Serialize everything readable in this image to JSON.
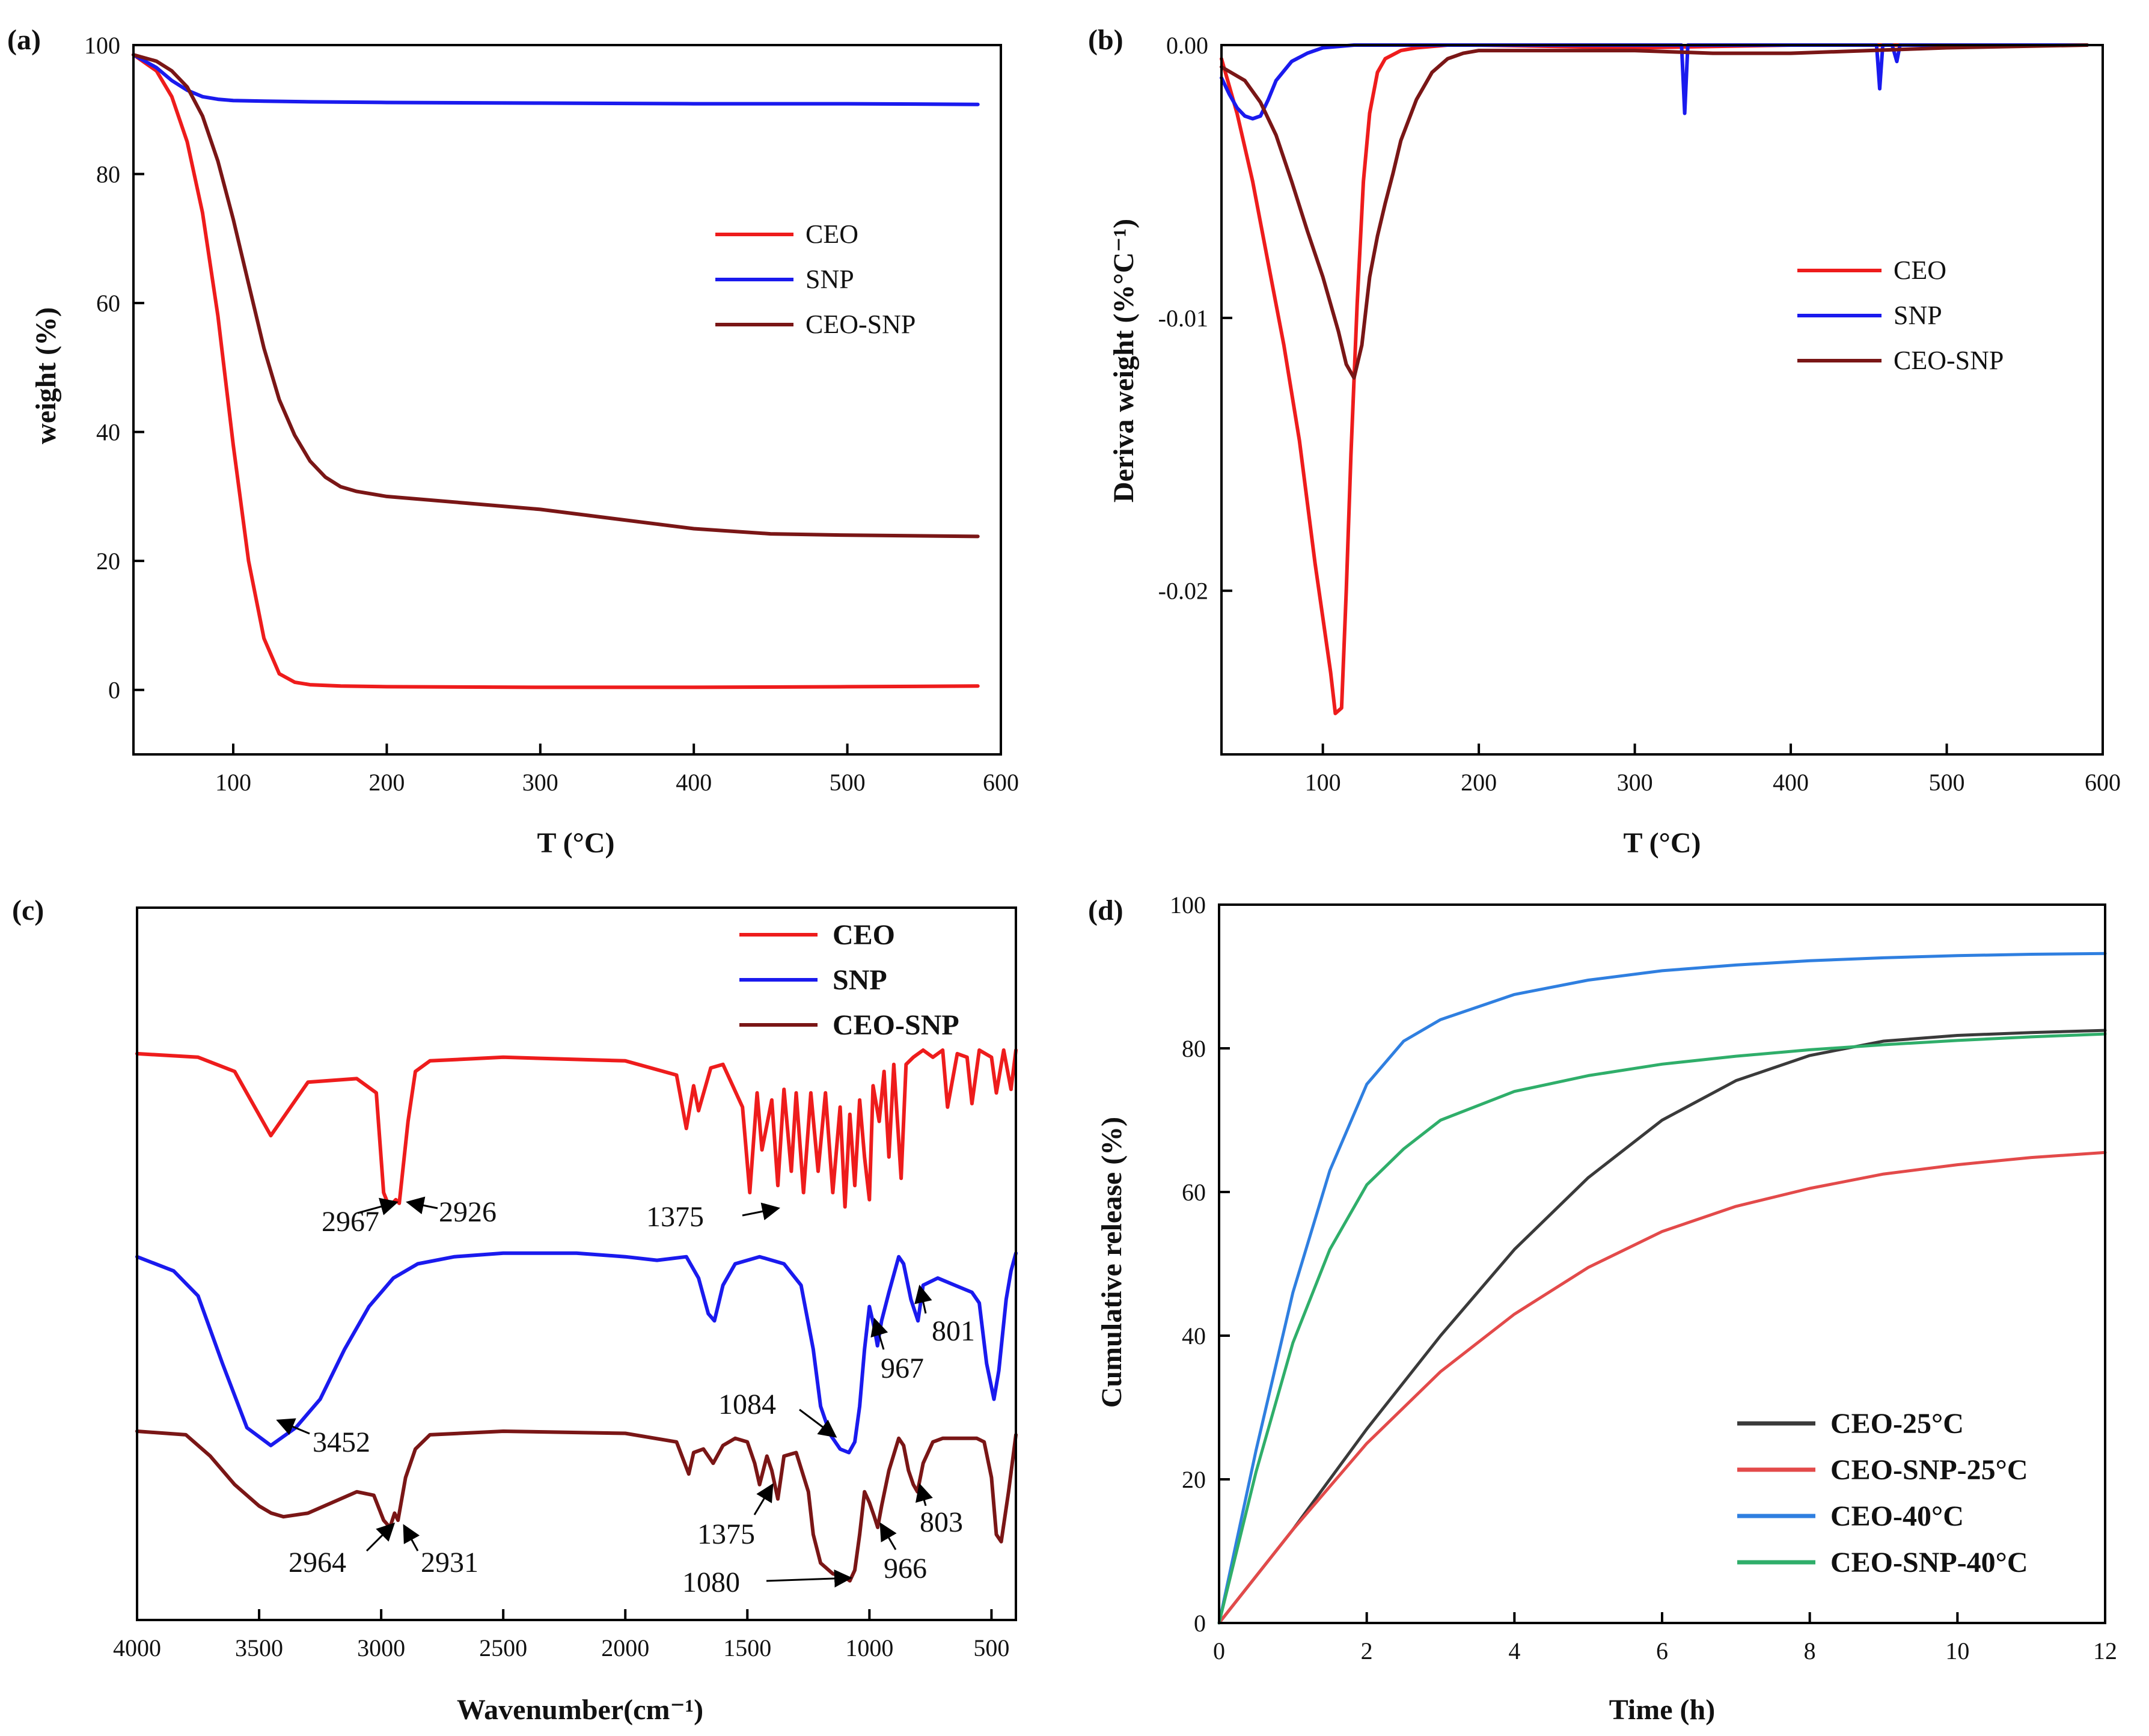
{
  "figure": {
    "panels": [
      "(a)",
      "(b)",
      "(c)",
      "(d)"
    ]
  },
  "chart_data": [
    {
      "id": "a",
      "type": "line",
      "panel_label": "(a)",
      "xlabel": "T (°C)",
      "ylabel": "weight (%)",
      "xlim": [
        35,
        600
      ],
      "ylim": [
        -10,
        100
      ],
      "xticks": [
        100,
        200,
        300,
        400,
        500,
        600
      ],
      "yticks": [
        0,
        20,
        40,
        60,
        80,
        100
      ],
      "legend_position": "center-right",
      "legend": [
        "CEO",
        "SNP",
        "CEO-SNP"
      ],
      "colors": [
        "#ee1c1c",
        "#1a1aee",
        "#7a1616"
      ],
      "series": [
        {
          "name": "CEO",
          "x": [
            35,
            50,
            60,
            70,
            80,
            90,
            100,
            110,
            120,
            130,
            140,
            150,
            170,
            200,
            300,
            400,
            500,
            585
          ],
          "y": [
            98.5,
            96,
            92,
            85,
            74,
            58,
            38,
            20,
            8,
            2.5,
            1.2,
            0.8,
            0.6,
            0.5,
            0.4,
            0.4,
            0.5,
            0.6
          ]
        },
        {
          "name": "SNP",
          "x": [
            35,
            50,
            60,
            70,
            80,
            90,
            100,
            120,
            150,
            200,
            300,
            400,
            500,
            585
          ],
          "y": [
            98.5,
            96.5,
            94.5,
            93,
            92,
            91.6,
            91.4,
            91.3,
            91.2,
            91.1,
            91,
            90.9,
            90.9,
            90.8
          ]
        },
        {
          "name": "CEO-SNP",
          "x": [
            35,
            50,
            60,
            70,
            80,
            90,
            100,
            110,
            120,
            130,
            140,
            150,
            160,
            170,
            180,
            200,
            250,
            300,
            350,
            400,
            450,
            500,
            585
          ],
          "y": [
            98.5,
            97.5,
            96,
            93.5,
            89,
            82,
            73,
            63,
            53,
            45,
            39.5,
            35.5,
            33,
            31.5,
            30.8,
            30,
            29,
            28,
            26.5,
            25,
            24.2,
            24,
            23.8
          ]
        }
      ]
    },
    {
      "id": "b",
      "type": "line",
      "panel_label": "(b)",
      "xlabel": "T (°C)",
      "ylabel": "Deriva weight (%°C⁻¹)",
      "xlim": [
        35,
        600
      ],
      "ylim": [
        -0.026,
        0
      ],
      "xticks": [
        100,
        200,
        300,
        400,
        500,
        600
      ],
      "yticks": [
        0.0,
        -0.01,
        -0.02
      ],
      "ytick_labels": [
        "0.00",
        "-0.01",
        "-0.02"
      ],
      "legend_position": "center-right",
      "legend": [
        "CEO",
        "SNP",
        "CEO-SNP"
      ],
      "colors": [
        "#ee1c1c",
        "#1a1aee",
        "#7a1616"
      ],
      "series": [
        {
          "name": "CEO",
          "x": [
            35,
            45,
            55,
            65,
            75,
            85,
            95,
            100,
            105,
            108,
            112,
            115,
            118,
            122,
            126,
            130,
            135,
            140,
            150,
            160,
            180,
            200,
            300,
            400,
            500,
            590
          ],
          "y": [
            -0.0005,
            -0.0025,
            -0.005,
            -0.008,
            -0.011,
            -0.0145,
            -0.019,
            -0.021,
            -0.023,
            -0.0245,
            -0.0243,
            -0.02,
            -0.015,
            -0.0095,
            -0.005,
            -0.0025,
            -0.001,
            -0.0005,
            -0.0002,
            -0.0001,
            0,
            0,
            -0.0001,
            0,
            0,
            0
          ]
        },
        {
          "name": "SNP",
          "x": [
            35,
            40,
            45,
            50,
            55,
            60,
            65,
            70,
            80,
            90,
            100,
            120,
            150,
            200,
            300,
            330,
            332,
            334,
            340,
            400,
            450,
            455,
            457,
            459,
            465,
            468,
            470,
            475,
            500,
            590
          ],
          "y": [
            -0.0012,
            -0.0018,
            -0.0023,
            -0.0026,
            -0.0027,
            -0.0026,
            -0.002,
            -0.0013,
            -0.0006,
            -0.0003,
            -0.0001,
            0,
            0,
            0,
            0,
            0,
            -0.0025,
            0,
            0,
            0,
            0,
            0,
            -0.0016,
            0,
            0,
            -0.0006,
            0,
            0,
            0,
            0
          ]
        },
        {
          "name": "CEO-SNP",
          "x": [
            35,
            50,
            60,
            70,
            80,
            90,
            100,
            110,
            115,
            120,
            125,
            130,
            135,
            140,
            145,
            150,
            160,
            170,
            180,
            190,
            200,
            250,
            300,
            350,
            400,
            450,
            500,
            590
          ],
          "y": [
            -0.0008,
            -0.0013,
            -0.0021,
            -0.0033,
            -0.005,
            -0.0068,
            -0.0085,
            -0.0105,
            -0.0117,
            -0.0122,
            -0.011,
            -0.0085,
            -0.007,
            -0.0058,
            -0.0047,
            -0.0035,
            -0.002,
            -0.001,
            -0.0005,
            -0.0003,
            -0.0002,
            -0.0002,
            -0.0002,
            -0.0003,
            -0.0003,
            -0.0002,
            -0.0001,
            0
          ]
        }
      ]
    },
    {
      "id": "c",
      "type": "line",
      "panel_label": "(c)",
      "xlabel": "Wavenumber(cm⁻¹)",
      "ylabel": "",
      "xlim": [
        4000,
        400
      ],
      "ylim": [
        0,
        1
      ],
      "xticks": [
        4000,
        3500,
        3000,
        2500,
        2000,
        1500,
        1000,
        500
      ],
      "legend_position": "top-right",
      "legend": [
        "CEO",
        "SNP",
        "CEO-SNP"
      ],
      "colors": [
        "#ee1c1c",
        "#1a1aee",
        "#7a1616"
      ],
      "series": [
        {
          "name": "CEO",
          "x": [
            4000,
            3750,
            3600,
            3452,
            3300,
            3100,
            3020,
            2990,
            2967,
            2940,
            2926,
            2890,
            2860,
            2800,
            2500,
            2000,
            1790,
            1750,
            1720,
            1700,
            1650,
            1600,
            1520,
            1490,
            1460,
            1440,
            1400,
            1375,
            1350,
            1320,
            1300,
            1270,
            1240,
            1210,
            1180,
            1150,
            1120,
            1100,
            1080,
            1060,
            1040,
            1020,
            1000,
            985,
            960,
            940,
            920,
            900,
            870,
            850,
            820,
            780,
            740,
            700,
            680,
            640,
            600,
            580,
            550,
            500,
            480,
            450,
            420,
            400
          ],
          "y": [
            0.795,
            0.79,
            0.77,
            0.68,
            0.755,
            0.76,
            0.74,
            0.6,
            0.58,
            0.59,
            0.585,
            0.7,
            0.77,
            0.785,
            0.79,
            0.785,
            0.765,
            0.69,
            0.75,
            0.715,
            0.775,
            0.78,
            0.72,
            0.6,
            0.74,
            0.66,
            0.73,
            0.61,
            0.745,
            0.63,
            0.74,
            0.6,
            0.74,
            0.63,
            0.74,
            0.6,
            0.72,
            0.58,
            0.71,
            0.61,
            0.73,
            0.65,
            0.59,
            0.75,
            0.7,
            0.77,
            0.65,
            0.78,
            0.62,
            0.78,
            0.79,
            0.8,
            0.79,
            0.8,
            0.72,
            0.795,
            0.79,
            0.725,
            0.8,
            0.79,
            0.74,
            0.8,
            0.745,
            0.8
          ]
        },
        {
          "name": "SNP",
          "x": [
            4000,
            3850,
            3750,
            3650,
            3550,
            3452,
            3350,
            3250,
            3150,
            3050,
            2950,
            2850,
            2700,
            2500,
            2200,
            2000,
            1870,
            1750,
            1700,
            1660,
            1635,
            1600,
            1550,
            1450,
            1350,
            1280,
            1230,
            1200,
            1160,
            1120,
            1084,
            1060,
            1040,
            1020,
            1000,
            980,
            967,
            950,
            920,
            880,
            860,
            830,
            801,
            780,
            720,
            650,
            580,
            550,
            520,
            490,
            470,
            440,
            420,
            400
          ],
          "y": [
            0.51,
            0.49,
            0.455,
            0.36,
            0.27,
            0.245,
            0.27,
            0.31,
            0.38,
            0.44,
            0.48,
            0.5,
            0.51,
            0.515,
            0.515,
            0.51,
            0.505,
            0.51,
            0.48,
            0.43,
            0.42,
            0.47,
            0.5,
            0.51,
            0.5,
            0.47,
            0.38,
            0.3,
            0.26,
            0.24,
            0.235,
            0.25,
            0.3,
            0.38,
            0.44,
            0.41,
            0.385,
            0.42,
            0.46,
            0.51,
            0.5,
            0.45,
            0.42,
            0.47,
            0.48,
            0.47,
            0.46,
            0.445,
            0.36,
            0.31,
            0.35,
            0.45,
            0.49,
            0.515
          ]
        },
        {
          "name": "CEO-SNP",
          "x": [
            4000,
            3800,
            3700,
            3600,
            3500,
            3450,
            3400,
            3300,
            3200,
            3100,
            3030,
            2990,
            2964,
            2945,
            2931,
            2900,
            2860,
            2800,
            2500,
            2000,
            1790,
            1740,
            1720,
            1680,
            1640,
            1600,
            1550,
            1500,
            1470,
            1450,
            1420,
            1400,
            1375,
            1350,
            1300,
            1250,
            1230,
            1200,
            1150,
            1100,
            1080,
            1060,
            1040,
            1020,
            1000,
            980,
            966,
            950,
            920,
            880,
            860,
            840,
            820,
            803,
            780,
            740,
            700,
            650,
            600,
            560,
            530,
            500,
            480,
            460,
            430,
            400
          ],
          "y": [
            0.265,
            0.26,
            0.23,
            0.19,
            0.16,
            0.15,
            0.145,
            0.15,
            0.165,
            0.18,
            0.175,
            0.14,
            0.13,
            0.15,
            0.14,
            0.2,
            0.24,
            0.26,
            0.265,
            0.262,
            0.25,
            0.205,
            0.235,
            0.24,
            0.22,
            0.245,
            0.255,
            0.25,
            0.22,
            0.19,
            0.23,
            0.21,
            0.17,
            0.23,
            0.235,
            0.18,
            0.12,
            0.08,
            0.065,
            0.06,
            0.055,
            0.07,
            0.12,
            0.18,
            0.165,
            0.145,
            0.13,
            0.16,
            0.21,
            0.255,
            0.245,
            0.21,
            0.19,
            0.18,
            0.22,
            0.25,
            0.255,
            0.255,
            0.255,
            0.255,
            0.25,
            0.2,
            0.12,
            0.11,
            0.18,
            0.26
          ]
        }
      ],
      "annotations": [
        "2967",
        "2926",
        "1375",
        "801",
        "967",
        "3452",
        "1084",
        "1375",
        "803",
        "2964",
        "2931",
        "966",
        "1080"
      ]
    },
    {
      "id": "d",
      "type": "line",
      "panel_label": "(d)",
      "xlabel": "Time (h)",
      "ylabel": "Cumulative release (%)",
      "xlim": [
        0,
        12
      ],
      "ylim": [
        0,
        100
      ],
      "xticks": [
        0,
        2,
        4,
        6,
        8,
        10,
        12
      ],
      "yticks": [
        0,
        20,
        40,
        60,
        80,
        100
      ],
      "legend_position": "bottom-right",
      "legend": [
        "CEO-25°C",
        "CEO-SNP-25°C",
        "CEO-40°C",
        "CEO-SNP-40°C"
      ],
      "colors": [
        "#3a3a3a",
        "#e34a4a",
        "#2f7fe0",
        "#2fae6a"
      ],
      "series": [
        {
          "name": "CEO-25°C",
          "x": [
            0,
            1,
            2,
            3,
            4,
            5,
            6,
            7,
            8,
            9,
            10,
            11,
            12
          ],
          "y": [
            0,
            13,
            27,
            40,
            52,
            62,
            70,
            75.5,
            79,
            81,
            81.8,
            82.2,
            82.5
          ]
        },
        {
          "name": "CEO-SNP-25°C",
          "x": [
            0,
            1,
            2,
            3,
            4,
            5,
            6,
            7,
            8,
            9,
            10,
            11,
            12
          ],
          "y": [
            0,
            13,
            25,
            35,
            43,
            49.5,
            54.5,
            58,
            60.5,
            62.5,
            63.8,
            64.8,
            65.5
          ]
        },
        {
          "name": "CEO-40°C",
          "x": [
            0,
            0.5,
            1,
            1.5,
            2,
            2.5,
            3,
            4,
            5,
            6,
            7,
            8,
            9,
            10,
            11,
            12
          ],
          "y": [
            0,
            24,
            46,
            63,
            75,
            81,
            84,
            87.5,
            89.5,
            90.8,
            91.6,
            92.2,
            92.6,
            92.9,
            93.1,
            93.2
          ]
        },
        {
          "name": "CEO-SNP-40°C",
          "x": [
            0,
            0.5,
            1,
            1.5,
            2,
            2.5,
            3,
            4,
            5,
            6,
            7,
            8,
            9,
            10,
            11,
            12
          ],
          "y": [
            0,
            21,
            39,
            52,
            61,
            66,
            70,
            74,
            76.2,
            77.8,
            78.9,
            79.8,
            80.5,
            81.1,
            81.6,
            82
          ]
        }
      ]
    }
  ]
}
